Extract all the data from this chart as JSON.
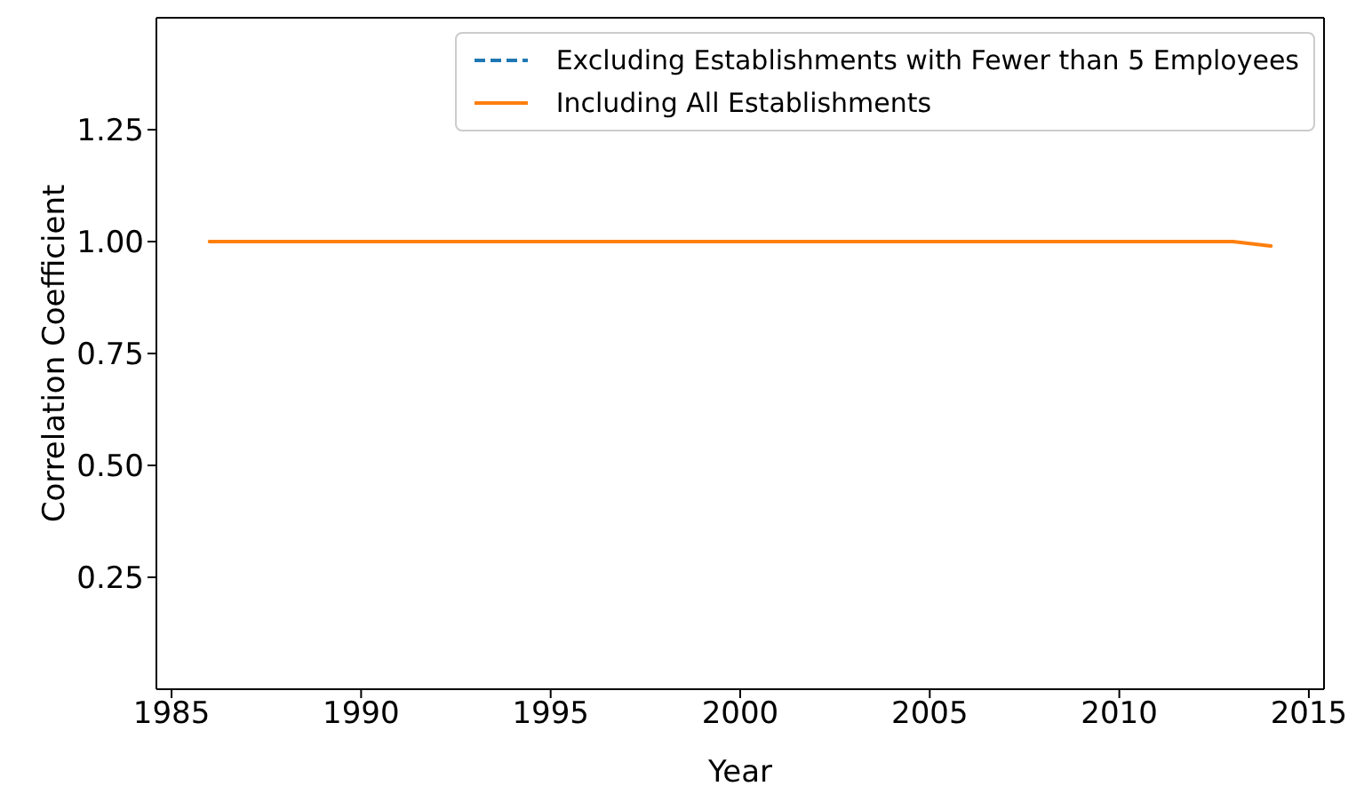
{
  "chart_data": {
    "type": "line",
    "xlabel": "Year",
    "ylabel": "Correlation Coefficient",
    "x": [
      1986,
      1987,
      1988,
      1989,
      1990,
      1991,
      1992,
      1993,
      1994,
      1995,
      1996,
      1997,
      1998,
      1999,
      2000,
      2001,
      2002,
      2003,
      2004,
      2005,
      2006,
      2007,
      2008,
      2009,
      2010,
      2011,
      2012,
      2013,
      2014
    ],
    "series": [
      {
        "name": "Excluding Establishments with Fewer than 5 Employees",
        "color": "#1f77b4",
        "line_style": "dashed",
        "values": [
          null,
          null,
          null,
          null,
          null,
          null,
          null,
          null,
          null,
          null,
          null,
          null,
          null,
          null,
          null,
          null,
          null,
          null,
          null,
          null,
          null,
          null,
          null,
          null,
          null,
          null,
          null,
          null,
          null
        ]
      },
      {
        "name": "Including All Establishments",
        "color": "#ff7f0e",
        "line_style": "solid",
        "values": [
          1.0,
          1.0,
          1.0,
          1.0,
          1.0,
          1.0,
          1.0,
          1.0,
          1.0,
          1.0,
          1.0,
          1.0,
          1.0,
          1.0,
          1.0,
          1.0,
          1.0,
          1.0,
          1.0,
          1.0,
          1.0,
          1.0,
          1.0,
          1.0,
          1.0,
          1.0,
          1.0,
          1.0,
          0.99
        ]
      }
    ],
    "xlim": [
      1984.6,
      2015.4
    ],
    "xticks": [
      1985,
      1990,
      1995,
      2000,
      2005,
      2010,
      2015
    ],
    "ylim": [
      0.0,
      1.5
    ],
    "yticks": [
      0.25,
      {
        "value": 0.5,
        "label": "0.50"
      },
      0.75,
      {
        "value": 1.0,
        "label": "1.00"
      },
      1.25
    ],
    "grid": false,
    "legend": "top right",
    "marker": "none"
  }
}
